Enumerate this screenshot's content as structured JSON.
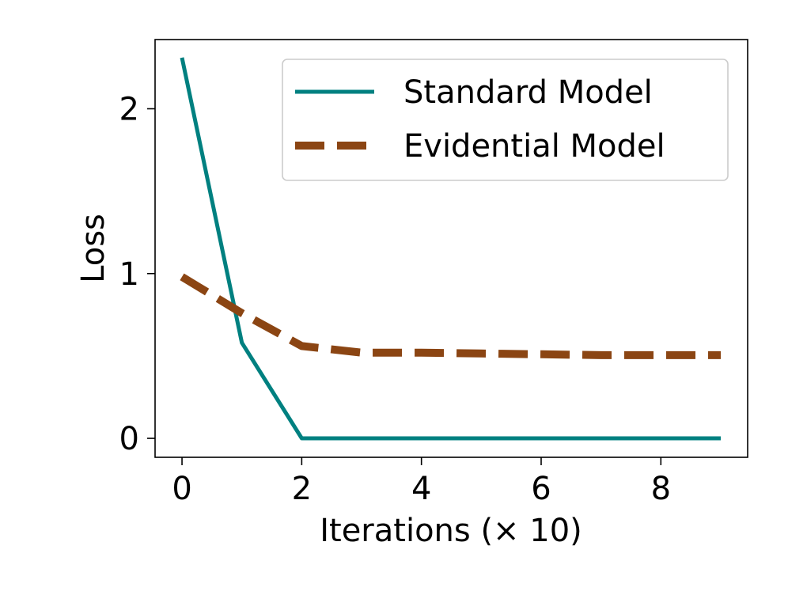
{
  "chart_data": {
    "type": "line",
    "xlabel": "Iterations (× 10)",
    "ylabel": "Loss",
    "xlim": [
      -0.45,
      9.45
    ],
    "ylim": [
      -0.115,
      2.42
    ],
    "xticks": [
      0,
      2,
      4,
      6,
      8
    ],
    "yticks": [
      0,
      1,
      2
    ],
    "grid": false,
    "legend_position": "top-right",
    "x": [
      0,
      1,
      2,
      3,
      4,
      5,
      6,
      7,
      8,
      9
    ],
    "series": [
      {
        "name": "Standard Model",
        "color": "#008080",
        "style": "solid",
        "values": [
          2.31,
          0.58,
          0.0,
          0.0,
          0.0,
          0.0,
          0.0,
          0.0,
          0.0,
          0.0
        ]
      },
      {
        "name": "Evidential Model",
        "color": "#8B4513",
        "style": "dashed",
        "values": [
          0.98,
          0.76,
          0.56,
          0.52,
          0.52,
          0.515,
          0.51,
          0.505,
          0.505,
          0.505
        ]
      }
    ]
  }
}
